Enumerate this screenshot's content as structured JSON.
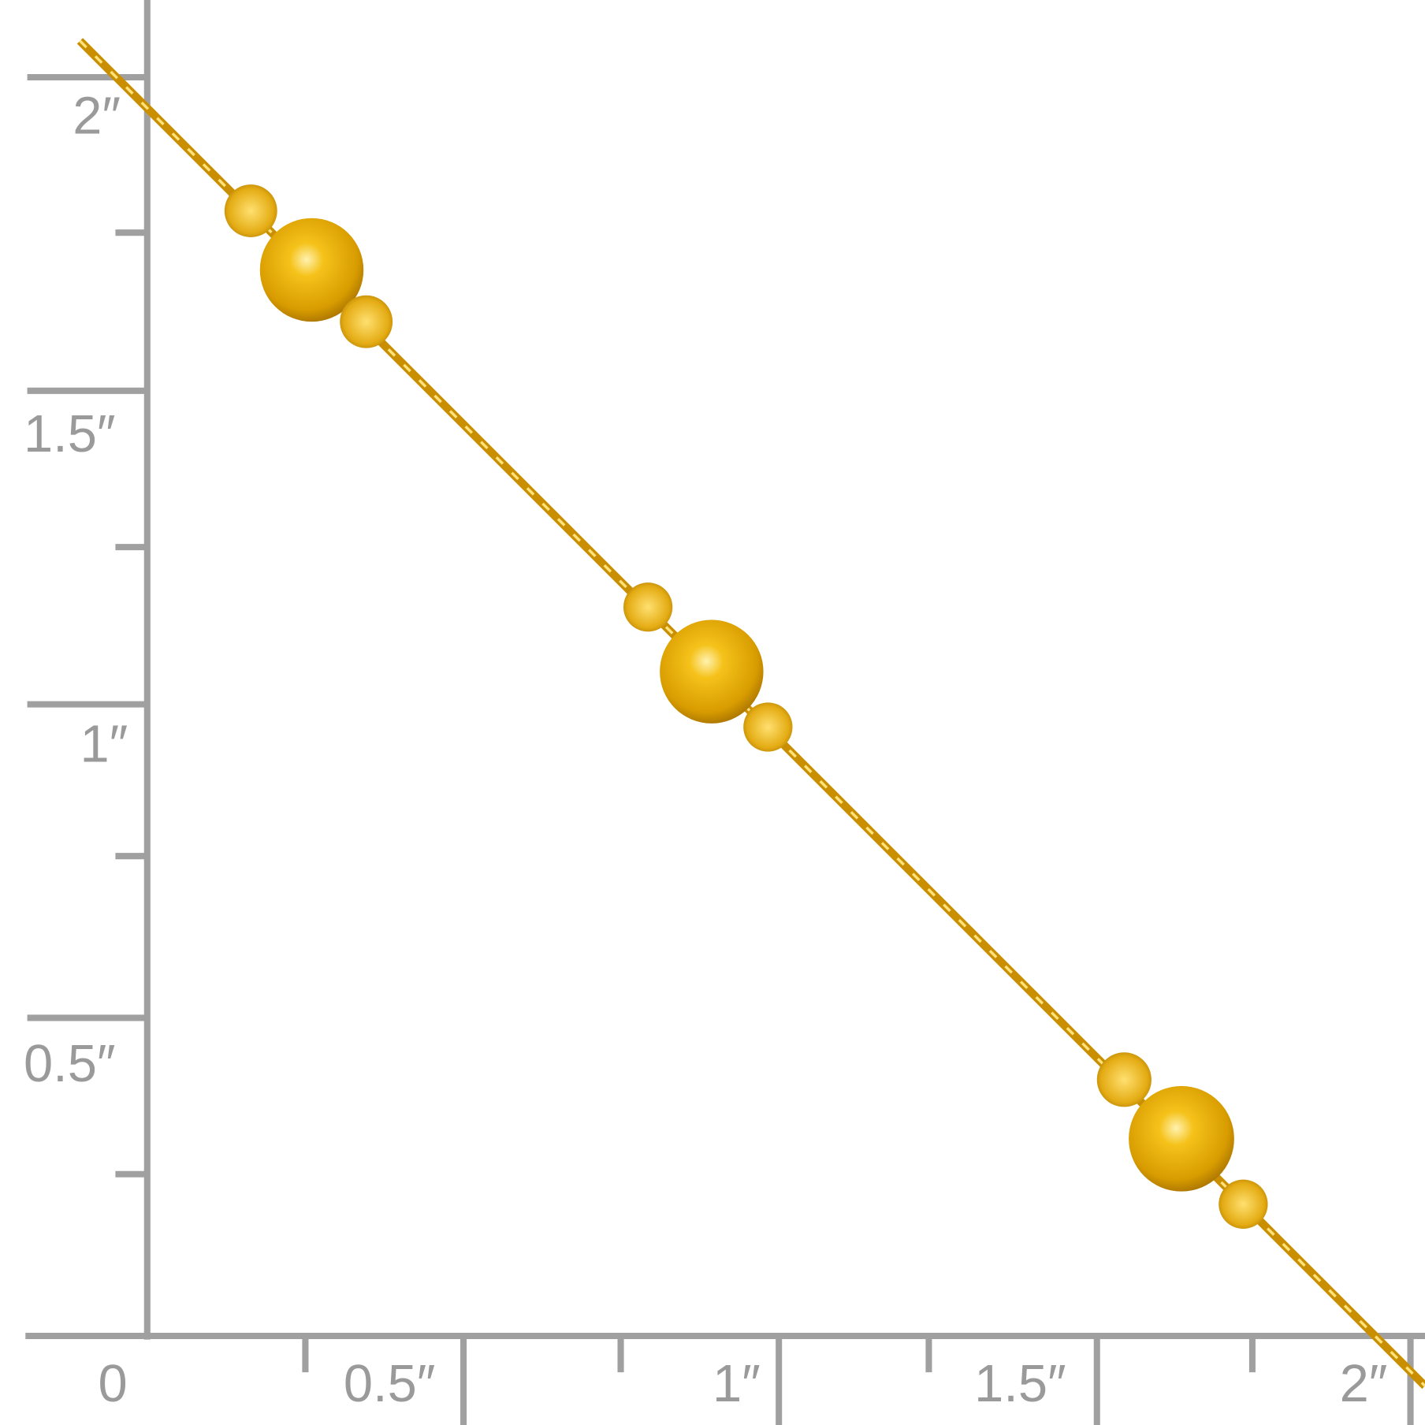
{
  "ruler": {
    "color": "#a0a0a0",
    "vertical_labels": [
      "2″",
      "1.5″",
      "1″",
      "0.5″"
    ],
    "horizontal_labels": [
      "0",
      "0.5″",
      "1″",
      "1.5″",
      "2″"
    ]
  },
  "product": {
    "description_colors": {
      "gold": "#e0a910",
      "gold_dark": "#b07a00",
      "gold_light": "#ffe38a"
    },
    "large_beads": 3,
    "small_beads": 6
  }
}
